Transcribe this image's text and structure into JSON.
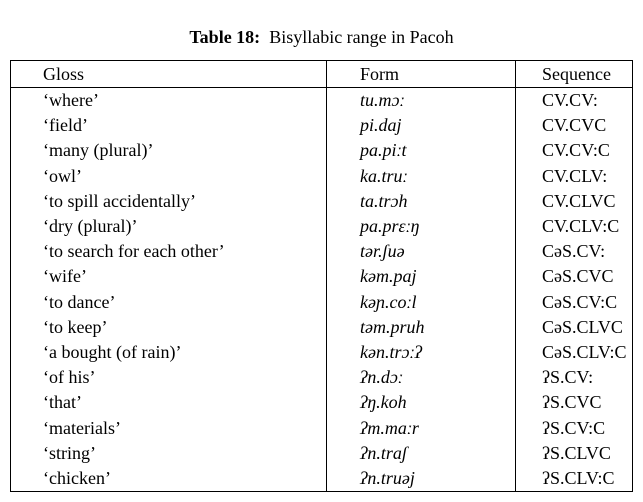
{
  "title": {
    "label": "Table 18:",
    "text": "  Bisyllabic range in Pacoh"
  },
  "table": {
    "columns": [
      "Gloss",
      "Form",
      "Sequence"
    ],
    "rows": [
      {
        "gloss": "‘where’",
        "form": "tu.mɔː",
        "sequence": "CV.CV:"
      },
      {
        "gloss": "‘field’",
        "form": "pi.daj",
        "sequence": "CV.CVC"
      },
      {
        "gloss": "‘many (plural)’",
        "form": "pa.piːt",
        "sequence": "CV.CV:C"
      },
      {
        "gloss": "‘owl’",
        "form": "ka.truː",
        "sequence": "CV.CLV:"
      },
      {
        "gloss": "‘to spill accidentally’",
        "form": "ta.trɔh",
        "sequence": "CV.CLVC"
      },
      {
        "gloss": "‘dry (plural)’",
        "form": "pa.prɛːŋ",
        "sequence": "CV.CLV:C"
      },
      {
        "gloss": "‘to search for each other’",
        "form": "tər.ʃuə",
        "sequence": "CəS.CV:"
      },
      {
        "gloss": "‘wife’",
        "form": "kəm.paj",
        "sequence": "CəS.CVC"
      },
      {
        "gloss": "‘to dance’",
        "form": "kəɲ.coːl",
        "sequence": "CəS.CV:C"
      },
      {
        "gloss": "‘to keep’",
        "form": "təm.pruh",
        "sequence": "CəS.CLVC"
      },
      {
        "gloss": "‘a bought (of rain)’",
        "form": "kən.trɔːʔ",
        "sequence": "CəS.CLV:C"
      },
      {
        "gloss": "‘of his’",
        "form": "ʔn.dɔː",
        "sequence": "ʔS.CV:"
      },
      {
        "gloss": "‘that’",
        "form": "ʔŋ.koh",
        "sequence": "ʔS.CVC"
      },
      {
        "gloss": "‘materials’",
        "form": "ʔm.maːr",
        "sequence": "ʔS.CV:C"
      },
      {
        "gloss": "‘string’",
        "form": "ʔn.traʃ",
        "sequence": "ʔS.CLVC"
      },
      {
        "gloss": "‘chicken’",
        "form": "ʔn.truəj",
        "sequence": "ʔS.CLV:C"
      }
    ]
  }
}
